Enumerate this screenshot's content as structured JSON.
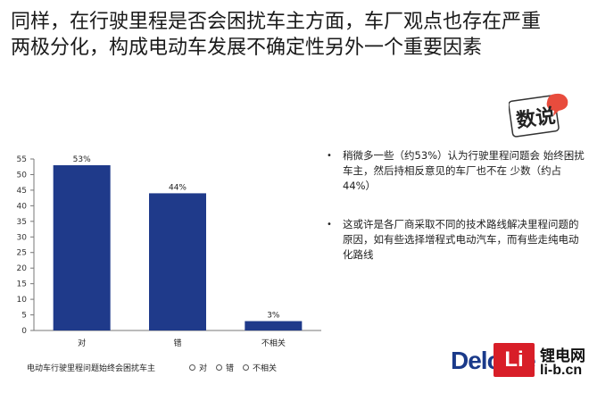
{
  "title": {
    "line1": "同样，在行驶里程是否会困扰车主方面，车厂观点也存在严重",
    "line2": "两极分化，构成电动车发展不确定性另外一个重要因素"
  },
  "stamp": {
    "text": "数说"
  },
  "chart_data": {
    "type": "bar",
    "categories": [
      "对",
      "错",
      "不相关"
    ],
    "series": [
      {
        "name": "电动车行驶里程问题始终会困扰车主",
        "values": [
          53,
          44,
          3
        ]
      }
    ],
    "data_labels": [
      "53%",
      "44%",
      "3%"
    ],
    "yticks": [
      "0",
      "5",
      "10",
      "15",
      "20",
      "25",
      "30",
      "35",
      "40",
      "45",
      "50",
      "55"
    ],
    "ylim": [
      0,
      55
    ],
    "bar_color": "#1f3a8a",
    "grid": false,
    "legend_position": "bottom"
  },
  "legend": {
    "series_label": "电动车行驶里程问题始终会困扰车主",
    "items": [
      "对",
      "错",
      "不相关"
    ]
  },
  "bullets": [
    "稍微多一些（约53%）认为行驶里程问题会 始终困扰车主，然后持相反意见的车厂也不在 少数（约占44%）",
    "这或许是各厂商采取不同的技术路线解决里程问题的原因，如有些选择增程式电动汽车，而有些走纯电动化路线"
  ],
  "bullet_marker": "•",
  "logo": {
    "deloitte": "Deloitte",
    "li_mark": "Li",
    "li_cn": "锂电网",
    "li_url": "li-b.cn"
  }
}
